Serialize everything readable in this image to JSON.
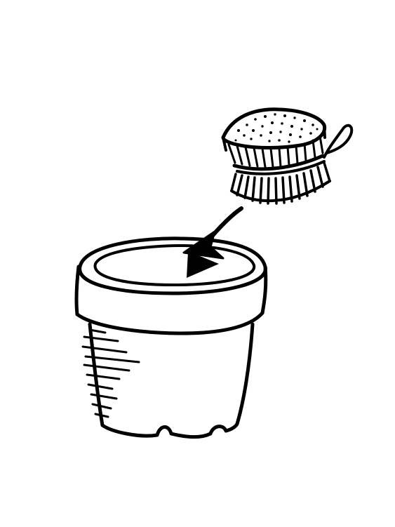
{
  "illustration": {
    "subjects": [
      "flower-pot",
      "scrub-brush",
      "arrow"
    ],
    "colors": {
      "ink": "#000000",
      "paper": "#ffffff"
    }
  }
}
